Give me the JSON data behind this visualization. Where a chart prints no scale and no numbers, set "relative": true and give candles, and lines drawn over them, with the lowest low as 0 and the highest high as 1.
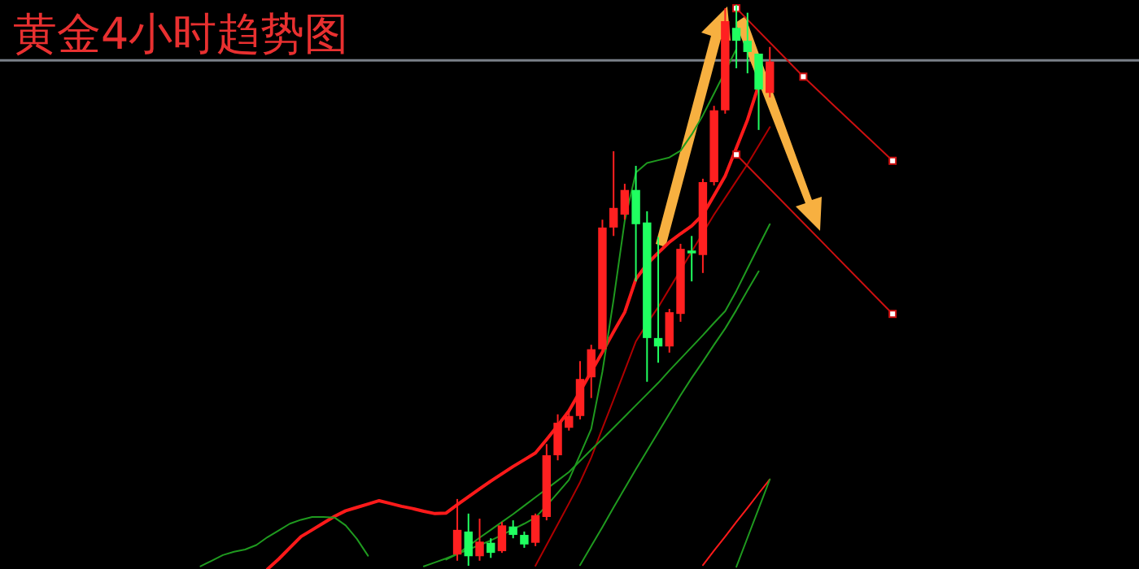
{
  "chart_data": {
    "type": "candlestick",
    "title": "黄金4小时趋势图",
    "relative": true,
    "categories": [
      null,
      null,
      null,
      null,
      null,
      null,
      null,
      null,
      null,
      null,
      null,
      null,
      null,
      null,
      null,
      null,
      null,
      null,
      null,
      null,
      null,
      null,
      null,
      null,
      null,
      null,
      null,
      null,
      null,
      null,
      null,
      null,
      null,
      null,
      null,
      null,
      null,
      null,
      null,
      null,
      null,
      null,
      null,
      null,
      null,
      null,
      null,
      null,
      null,
      null,
      null,
      null,
      null,
      null,
      null,
      null,
      null,
      null,
      null,
      null,
      null,
      null,
      null,
      null
    ],
    "ohlc": [
      null,
      null,
      null,
      null,
      null,
      null,
      null,
      null,
      null,
      null,
      null,
      null,
      null,
      null,
      null,
      null,
      null,
      null,
      null,
      null,
      null,
      null,
      null,
      null,
      [
        0.02,
        0.119,
        0.009,
        0.064
      ],
      [
        0.061,
        0.093,
        0.0,
        0.017
      ],
      [
        0.017,
        0.084,
        0.009,
        0.043
      ],
      [
        0.041,
        0.049,
        0.014,
        0.023
      ],
      [
        0.026,
        0.078,
        0.023,
        0.072
      ],
      [
        0.07,
        0.081,
        0.049,
        0.055
      ],
      [
        0.055,
        0.061,
        0.032,
        0.038
      ],
      [
        0.041,
        0.093,
        0.035,
        0.09
      ],
      [
        0.087,
        0.217,
        0.081,
        0.197
      ],
      [
        0.197,
        0.27,
        0.188,
        0.255
      ],
      [
        0.246,
        0.275,
        0.241,
        0.267
      ],
      [
        0.267,
        0.365,
        0.261,
        0.333
      ],
      [
        0.336,
        0.394,
        0.299,
        0.386
      ],
      [
        0.386,
        0.617,
        0.38,
        0.603
      ],
      [
        0.603,
        0.739,
        0.588,
        0.638
      ],
      [
        0.626,
        0.681,
        0.617,
        0.67
      ],
      [
        0.67,
        0.713,
        0.507,
        0.609
      ],
      [
        0.612,
        0.632,
        0.328,
        0.406
      ],
      [
        0.406,
        0.586,
        0.362,
        0.391
      ],
      [
        0.391,
        0.458,
        0.38,
        0.452
      ],
      [
        0.449,
        0.574,
        0.435,
        0.565
      ],
      [
        0.562,
        0.588,
        0.507,
        0.557
      ],
      [
        0.554,
        0.69,
        0.522,
        0.684
      ],
      [
        0.684,
        0.82,
        0.678,
        0.812
      ],
      [
        0.812,
        0.994,
        0.806,
        0.971
      ],
      [
        0.959,
        1.0,
        0.887,
        0.936
      ],
      [
        0.936,
        0.986,
        0.878,
        0.916
      ],
      [
        0.913,
        0.913,
        0.777,
        0.849
      ],
      [
        0.843,
        0.925,
        0.835,
        0.899
      ],
      null,
      null,
      null,
      null,
      null,
      null,
      null,
      null,
      null,
      null,
      null
    ],
    "colors": [
      null,
      null,
      null,
      null,
      null,
      null,
      null,
      null,
      null,
      null,
      null,
      null,
      null,
      null,
      null,
      null,
      null,
      null,
      null,
      null,
      null,
      null,
      null,
      null,
      "#ff2020",
      "#20ff60",
      "#ff2020",
      "#20ff60",
      "#ff2020",
      "#20ff60",
      "#20ff60",
      "#ff2020",
      "#ff2020",
      "#ff2020",
      "#ff2020",
      "#ff2020",
      "#ff2020",
      "#ff2020",
      "#ff2020",
      "#ff2020",
      "#20ff60",
      "#20ff60",
      "#20ff60",
      "#ff2020",
      "#ff2020",
      "#20ff60",
      "#ff2020",
      "#ff2020",
      "#ff2020",
      "#20ff60",
      "#20ff60",
      "#20ff60",
      "#ff2020",
      null,
      null,
      null,
      null,
      null,
      null,
      null,
      null,
      null,
      null,
      null
    ],
    "series": [
      {
        "type": "line",
        "color": "#ff1a1a",
        "values": [
          null,
          null,
          null,
          null,
          null,
          null,
          null,
          -0.006,
          0.012,
          0.032,
          0.052,
          0.064,
          0.076,
          0.088,
          0.098,
          0.104,
          0.11,
          0.116,
          0.111,
          0.106,
          0.102,
          0.097,
          0.093,
          0.094,
          0.109,
          0.123,
          0.137,
          0.151,
          0.164,
          0.177,
          0.189,
          0.201,
          0.225,
          0.25,
          0.276,
          0.311,
          0.346,
          0.381,
          0.417,
          0.452,
          0.511,
          0.538,
          0.558,
          0.577,
          0.592,
          0.606,
          0.626,
          0.66,
          0.695,
          0.745,
          0.795,
          0.857,
          null,
          null,
          null,
          null,
          null,
          null,
          null,
          null,
          null,
          null,
          null,
          null
        ]
      },
      {
        "type": "line",
        "color": "#1f9a1f",
        "values": [
          null,
          -0.001,
          0.009,
          0.019,
          0.025,
          0.029,
          0.037,
          0.051,
          0.063,
          0.075,
          0.082,
          0.087,
          0.087,
          0.086,
          0.072,
          0.048,
          0.018,
          null,
          null,
          null,
          null,
          null,
          null,
          null,
          null,
          null,
          null,
          null,
          null,
          null,
          null,
          null,
          null,
          null,
          null,
          null,
          null,
          null,
          null,
          null,
          null,
          null,
          null,
          null,
          null,
          null,
          null,
          null,
          null,
          null,
          null,
          null,
          null,
          null,
          null,
          null,
          null,
          null,
          null,
          null,
          null,
          null,
          null,
          null
        ]
      },
      {
        "type": "line",
        "color": "#1f9a1f",
        "values": [
          null,
          null,
          null,
          null,
          null,
          null,
          null,
          null,
          null,
          null,
          null,
          null,
          null,
          null,
          null,
          null,
          null,
          null,
          null,
          null,
          null,
          -0.001,
          0.006,
          0.013,
          0.021,
          0.029,
          0.037,
          0.045,
          0.055,
          0.065,
          0.075,
          0.086,
          0.107,
          0.13,
          0.153,
          0.198,
          0.244,
          0.346,
          0.474,
          0.615,
          0.701,
          0.718,
          0.723,
          0.728,
          0.74,
          0.769,
          0.803,
          0.842,
          null,
          0.921,
          null,
          null,
          null,
          null,
          null,
          null,
          null,
          null,
          null,
          null,
          null,
          null,
          null,
          null
        ]
      },
      {
        "type": "line",
        "color": "#b00000",
        "values": [
          null,
          null,
          null,
          null,
          null,
          null,
          null,
          null,
          null,
          null,
          null,
          null,
          null,
          null,
          null,
          null,
          null,
          null,
          null,
          null,
          null,
          null,
          null,
          null,
          null,
          null,
          null,
          null,
          null,
          null,
          null,
          0.0,
          0.037,
          0.074,
          0.111,
          0.149,
          0.193,
          0.245,
          0.296,
          0.348,
          0.4,
          0.432,
          0.461,
          0.494,
          0.527,
          0.56,
          0.593,
          0.626,
          0.656,
          0.686,
          0.716,
          0.749,
          0.782,
          null,
          null,
          null,
          null,
          null,
          null,
          null,
          null,
          null,
          null,
          null
        ]
      },
      {
        "type": "line",
        "color": "#1f9a1f",
        "values": [
          null,
          null,
          null,
          null,
          null,
          null,
          null,
          null,
          null,
          null,
          null,
          null,
          null,
          null,
          null,
          null,
          null,
          null,
          null,
          null,
          null,
          null,
          null,
          0.011,
          0.021,
          0.035,
          0.05,
          0.064,
          0.078,
          0.092,
          0.107,
          0.122,
          0.137,
          0.152,
          0.167,
          0.187,
          0.207,
          0.226,
          0.246,
          0.266,
          0.286,
          0.306,
          0.326,
          0.348,
          0.369,
          0.39,
          0.411,
          0.433,
          0.454,
          0.49,
          0.53,
          0.57,
          0.609,
          null,
          null,
          null,
          null,
          null,
          null,
          null,
          null,
          null,
          null,
          null
        ]
      },
      {
        "type": "line",
        "color": "#1f9a1f",
        "values": [
          null,
          null,
          null,
          null,
          null,
          null,
          null,
          null,
          null,
          null,
          null,
          null,
          null,
          null,
          null,
          null,
          null,
          null,
          null,
          null,
          null,
          null,
          null,
          null,
          null,
          null,
          null,
          null,
          null,
          null,
          null,
          null,
          null,
          null,
          null,
          0.001,
          0.035,
          0.069,
          0.104,
          0.138,
          0.172,
          0.205,
          0.238,
          0.271,
          0.304,
          0.335,
          0.364,
          0.394,
          0.423,
          0.456,
          0.491,
          0.525,
          null,
          null,
          null,
          null,
          null,
          null,
          null,
          null,
          null,
          null,
          null,
          null
        ]
      },
      {
        "type": "line",
        "color": "#ff1a1a",
        "values": [
          null,
          null,
          null,
          null,
          null,
          null,
          null,
          null,
          null,
          null,
          null,
          null,
          null,
          null,
          null,
          null,
          null,
          null,
          null,
          null,
          null,
          null,
          null,
          null,
          null,
          null,
          null,
          null,
          null,
          null,
          null,
          null,
          null,
          null,
          null,
          null,
          null,
          null,
          null,
          null,
          null,
          null,
          null,
          null,
          null,
          null,
          0.001,
          0.027,
          0.052,
          0.078,
          0.103,
          0.129,
          0.154,
          null,
          null,
          null,
          null,
          null,
          null,
          null,
          null,
          null,
          null,
          null
        ]
      },
      {
        "type": "line",
        "color": "#1f9a1f",
        "values": [
          null,
          null,
          null,
          null,
          null,
          null,
          null,
          null,
          null,
          null,
          null,
          null,
          null,
          null,
          null,
          null,
          null,
          null,
          null,
          null,
          null,
          null,
          null,
          null,
          null,
          null,
          null,
          null,
          null,
          null,
          null,
          null,
          null,
          null,
          null,
          null,
          null,
          null,
          null,
          null,
          null,
          null,
          null,
          null,
          null,
          null,
          null,
          null,
          null,
          -0.002,
          0.05,
          0.102,
          0.154,
          null,
          null,
          null,
          null,
          null,
          null,
          null,
          null,
          null,
          null,
          null
        ]
      },
      {
        "type": "line",
        "color": "#cc1010",
        "marker": "square",
        "values": [
          null,
          null,
          null,
          null,
          null,
          null,
          null,
          null,
          null,
          null,
          null,
          null,
          null,
          null,
          null,
          null,
          null,
          null,
          null,
          null,
          null,
          null,
          null,
          null,
          null,
          null,
          null,
          null,
          null,
          null,
          null,
          null,
          null,
          null,
          null,
          null,
          null,
          null,
          null,
          null,
          null,
          null,
          null,
          null,
          null,
          null,
          null,
          null,
          null,
          0.994,
          null,
          null,
          null,
          null,
          null,
          0.872,
          null,
          null,
          null,
          null,
          null,
          null,
          null,
          0.722
        ]
      },
      {
        "type": "line",
        "color": "#cc1010",
        "marker": "square",
        "values": [
          null,
          null,
          null,
          null,
          null,
          null,
          null,
          null,
          null,
          null,
          null,
          null,
          null,
          null,
          null,
          null,
          null,
          null,
          null,
          null,
          null,
          null,
          null,
          null,
          null,
          null,
          null,
          null,
          null,
          null,
          null,
          null,
          null,
          null,
          null,
          null,
          null,
          null,
          null,
          null,
          null,
          null,
          null,
          null,
          null,
          null,
          null,
          null,
          null,
          0.733,
          null,
          null,
          null,
          null,
          null,
          null,
          null,
          null,
          null,
          null,
          null,
          null,
          null,
          0.449
        ]
      }
    ],
    "ref_lines": [
      {
        "axis": "y",
        "value": 0.901,
        "color": "#7a8088"
      }
    ]
  }
}
